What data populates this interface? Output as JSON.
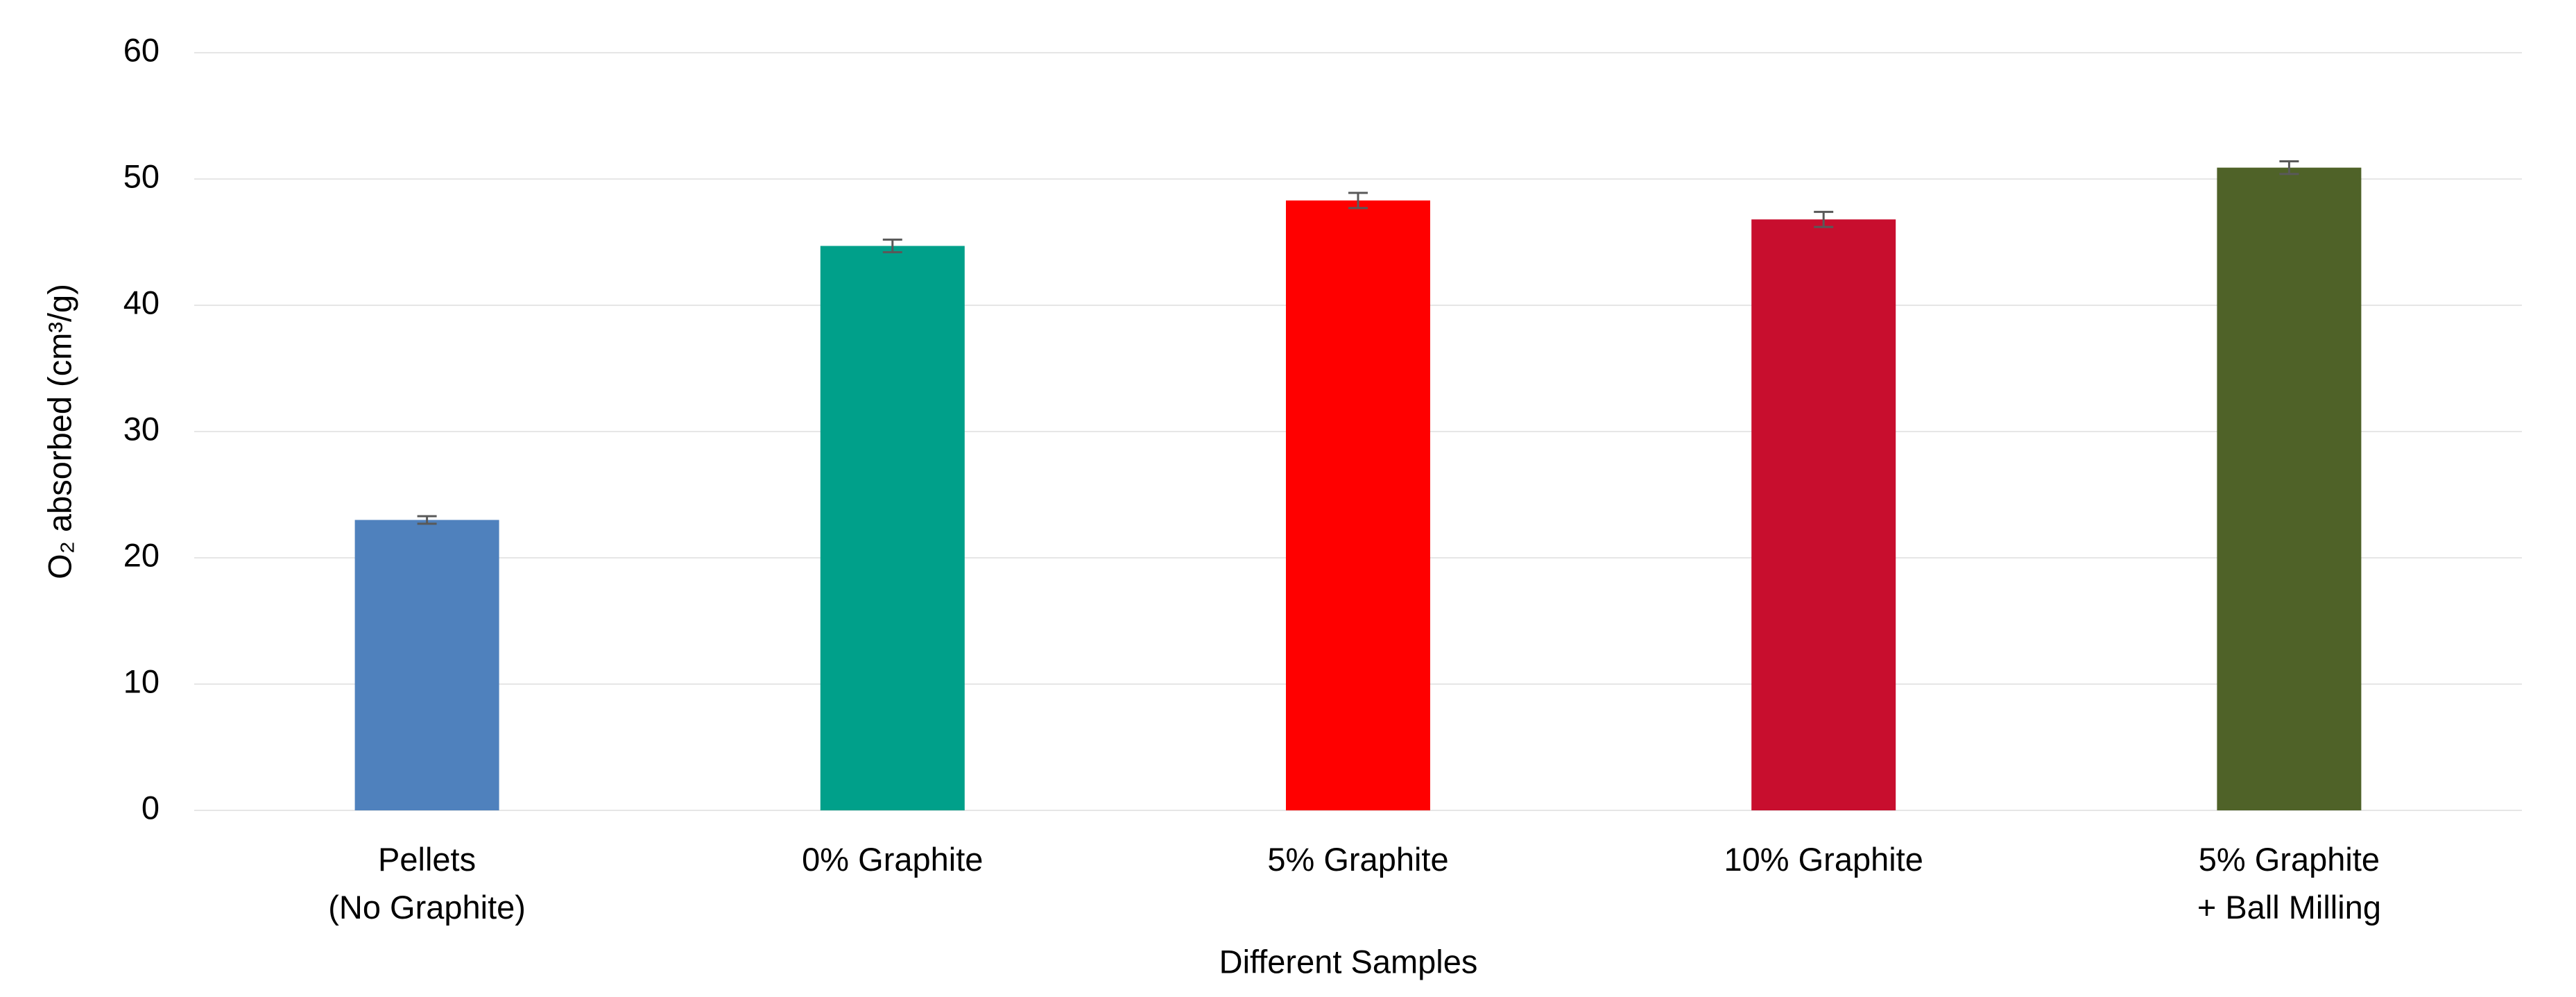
{
  "chart_data": {
    "type": "bar",
    "categories": [
      "Pellets\n(No Graphite)",
      "0% Graphite",
      "5% Graphite",
      "10% Graphite",
      "5% Graphite\n+ Ball Milling"
    ],
    "values": [
      23,
      44.7,
      48.3,
      46.8,
      50.9
    ],
    "errors": [
      0.3,
      0.5,
      0.6,
      0.6,
      0.5
    ],
    "colors": [
      "#4f81bd",
      "#00a08a",
      "#ff0000",
      "#c80e2e",
      "#4f6228"
    ],
    "error_color": "#595959",
    "xlabel": "Different Samples",
    "ylabel": "O₂ absorbed (cm³/g)",
    "ylim": [
      0,
      60
    ],
    "yticks": [
      0,
      10,
      20,
      30,
      40,
      50,
      60
    ],
    "grid": true
  }
}
